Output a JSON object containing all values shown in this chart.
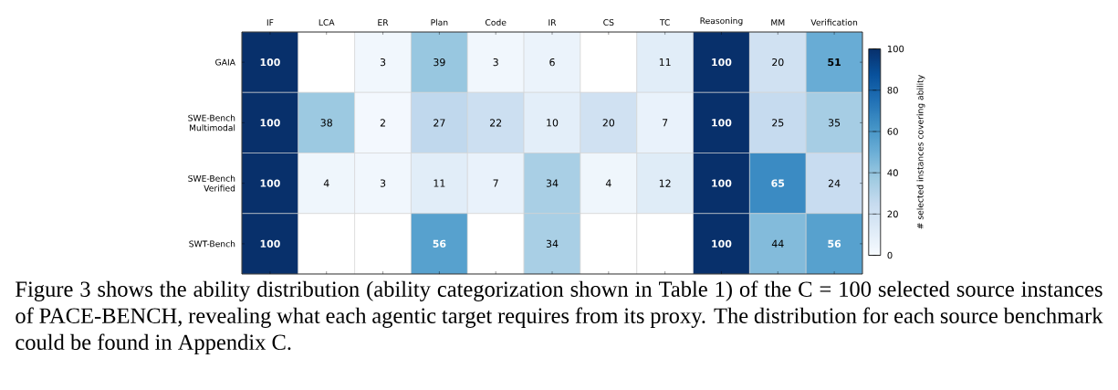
{
  "chart_data": {
    "type": "heatmap",
    "categories": [
      "IF",
      "LCA",
      "ER",
      "Plan",
      "Code",
      "IR",
      "CS",
      "TC",
      "Reasoning",
      "MM",
      "Verification"
    ],
    "y_categories": [
      "GAIA",
      "SWE-Bench Multimodal",
      "SWE-Bench Verified",
      "SWT-Bench"
    ],
    "cells": [
      [
        100,
        null,
        3,
        39,
        3,
        6,
        null,
        11,
        100,
        20,
        51
      ],
      [
        100,
        38,
        2,
        27,
        22,
        10,
        20,
        7,
        100,
        25,
        35
      ],
      [
        100,
        4,
        3,
        11,
        7,
        34,
        4,
        12,
        100,
        65,
        24
      ],
      [
        100,
        null,
        null,
        56,
        null,
        34,
        null,
        null,
        100,
        44,
        56
      ]
    ],
    "clim": [
      0,
      100
    ],
    "cticks": [
      0,
      20,
      40,
      60,
      80,
      100
    ],
    "clabel": "# selected instances covering ability",
    "data_labels": true,
    "annotations": [
      "Figure 3 shows the ability distribution (ability categorization shown in Table 1) of the C = 100 selected source instances of PACE-BENCH, revealing what each agentic target requires from its proxy. The distribution for each source benchmark could be found in Appendix C."
    ]
  }
}
